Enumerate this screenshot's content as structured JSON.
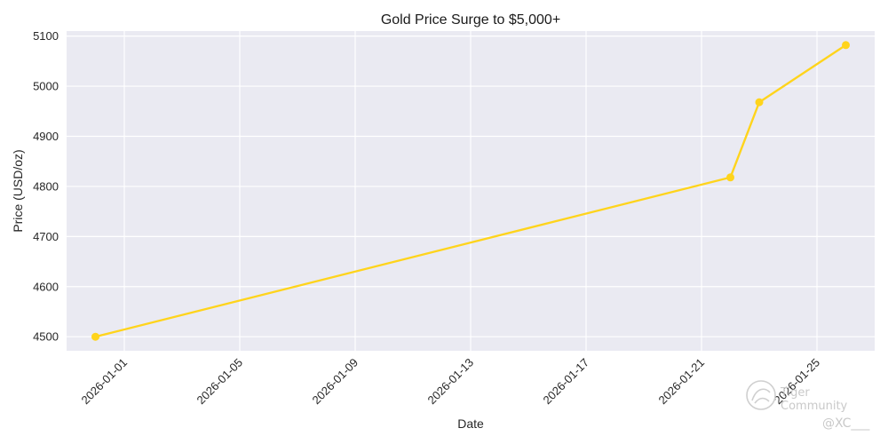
{
  "chart_data": {
    "type": "line",
    "title": "Gold Price Surge to $5,000+",
    "xlabel": "Date",
    "ylabel": "Price (USD/oz)",
    "x": [
      "2025-12-31",
      "2026-01-22",
      "2026-01-23",
      "2026-01-26"
    ],
    "values": [
      4500,
      4818,
      4968,
      5082
    ],
    "xlim": [
      "2025-12-30",
      "2026-01-27"
    ],
    "ylim": [
      4472,
      5110
    ],
    "x_ticks": [
      "2026-01-01",
      "2026-01-05",
      "2026-01-09",
      "2026-01-13",
      "2026-01-17",
      "2026-01-21",
      "2026-01-25"
    ],
    "y_ticks": [
      4500,
      4600,
      4700,
      4800,
      4900,
      5000,
      5100
    ],
    "grid": true,
    "line_color": "#FFD41C",
    "plot_background": "#EAEAF2"
  },
  "watermark": {
    "brand": "Tiger Community",
    "handle": "@XC___"
  }
}
